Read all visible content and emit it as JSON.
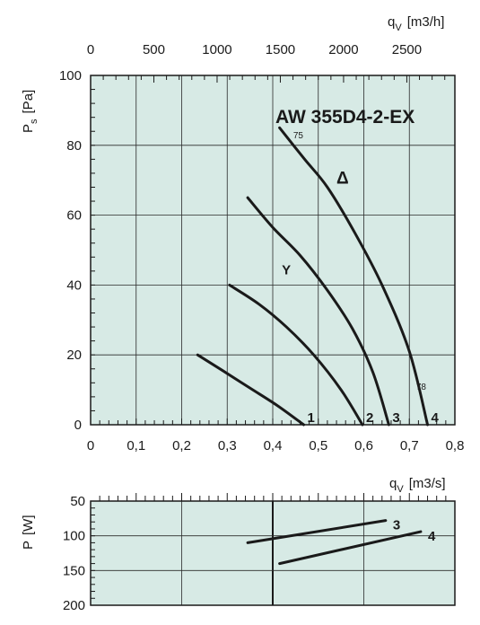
{
  "chart_data": [
    {
      "type": "line",
      "title": "AW 355D4-2-EX",
      "xlabel": "q",
      "xlabel_sub": "V",
      "xunit": "[m3/s]",
      "x2label": "q",
      "x2label_sub": "V",
      "x2unit": "[m3/h]",
      "ylabel": "P",
      "ylabel_sub": "s",
      "yunit": "[Pa]",
      "xlim": [
        0,
        0.8
      ],
      "ylim": [
        0,
        100
      ],
      "x2lim": [
        0,
        2880
      ],
      "x_ticks": [
        "0",
        "0,1",
        "0,2",
        "0,3",
        "0,4",
        "0,5",
        "0,6",
        "0,7",
        "0,8"
      ],
      "y_ticks": [
        "0",
        "20",
        "40",
        "60",
        "80",
        "100"
      ],
      "x2_ticks": [
        "0",
        "500",
        "1000",
        "1500",
        "2000",
        "2500"
      ],
      "grid": true,
      "background": "#d7eae5",
      "line_color": "#1a1a1a",
      "series": [
        {
          "name": "1",
          "x": [
            0.235,
            0.29,
            0.35,
            0.41,
            0.468
          ],
          "y": [
            20,
            15.5,
            10.5,
            5.5,
            0
          ]
        },
        {
          "name": "2",
          "x": [
            0.305,
            0.37,
            0.43,
            0.49,
            0.55,
            0.597
          ],
          "y": [
            40,
            34.5,
            28,
            20,
            10,
            0
          ]
        },
        {
          "name": "3",
          "x": [
            0.345,
            0.4,
            0.46,
            0.52,
            0.575,
            0.62,
            0.655
          ],
          "y": [
            65,
            56.5,
            48.5,
            38.5,
            27.5,
            15,
            0
          ]
        },
        {
          "name": "4",
          "x": [
            0.415,
            0.47,
            0.52,
            0.58,
            0.64,
            0.7,
            0.74
          ],
          "y": [
            85,
            76,
            68,
            55,
            40,
            21,
            0
          ]
        }
      ],
      "annotations": [
        {
          "text": "Δ",
          "x": 0.54,
          "y": 69
        },
        {
          "text": "Y",
          "x": 0.42,
          "y": 43
        },
        {
          "text": "75",
          "x": 0.445,
          "y": 82
        },
        {
          "text": "78",
          "x": 0.715,
          "y": 10
        }
      ]
    },
    {
      "type": "line",
      "ylabel": "P",
      "yunit": "[W]",
      "xlim": [
        0,
        0.8
      ],
      "ylim": [
        200,
        50
      ],
      "y_ticks": [
        "50",
        "100",
        "150",
        "200"
      ],
      "grid": true,
      "background": "#d7eae5",
      "line_color": "#1a1a1a",
      "series": [
        {
          "name": "3",
          "x": [
            0.345,
            0.648
          ],
          "y": [
            110,
            78
          ]
        },
        {
          "name": "4",
          "x": [
            0.415,
            0.725
          ],
          "y": [
            140,
            94
          ]
        }
      ]
    }
  ]
}
